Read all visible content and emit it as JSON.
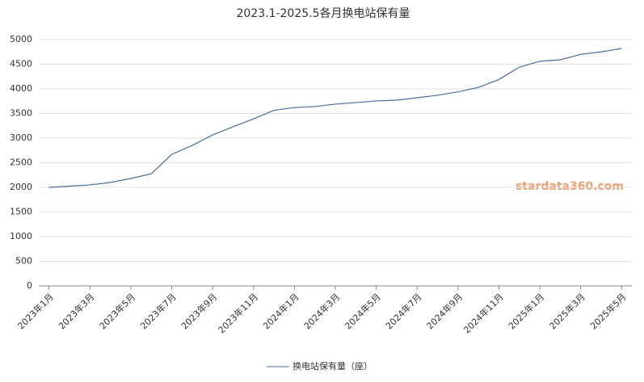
{
  "chart_data": {
    "type": "line",
    "title": "2023.1-2025.5各月换电站保有量",
    "watermark": "stardata360.com",
    "categories": [
      "2023年1月",
      null,
      "2023年3月",
      null,
      "2023年5月",
      null,
      "2023年7月",
      null,
      "2023年9月",
      null,
      "2023年11月",
      null,
      "2024年1月",
      null,
      "2024年3月",
      null,
      "2024年5月",
      null,
      "2024年7月",
      null,
      "2024年9月",
      null,
      "2024年11月",
      null,
      "2025年1月",
      null,
      "2025年3月",
      null,
      "2025年5月"
    ],
    "series": [
      {
        "name": "换电站保有量（座）",
        "color": "#4a6b9a",
        "values": [
          2000,
          2025,
          2050,
          2100,
          2180,
          2275,
          2670,
          2850,
          3065,
          3230,
          3390,
          3565,
          3620,
          3640,
          3690,
          3720,
          3755,
          3770,
          3820,
          3870,
          3940,
          4030,
          4190,
          4440,
          4560,
          4590,
          4700,
          4750,
          4820
        ]
      }
    ],
    "ylim": [
      0,
      5000
    ],
    "yticks": [
      0,
      500,
      1000,
      1500,
      2000,
      2500,
      3000,
      3500,
      4000,
      4500,
      5000
    ],
    "grid": true
  }
}
